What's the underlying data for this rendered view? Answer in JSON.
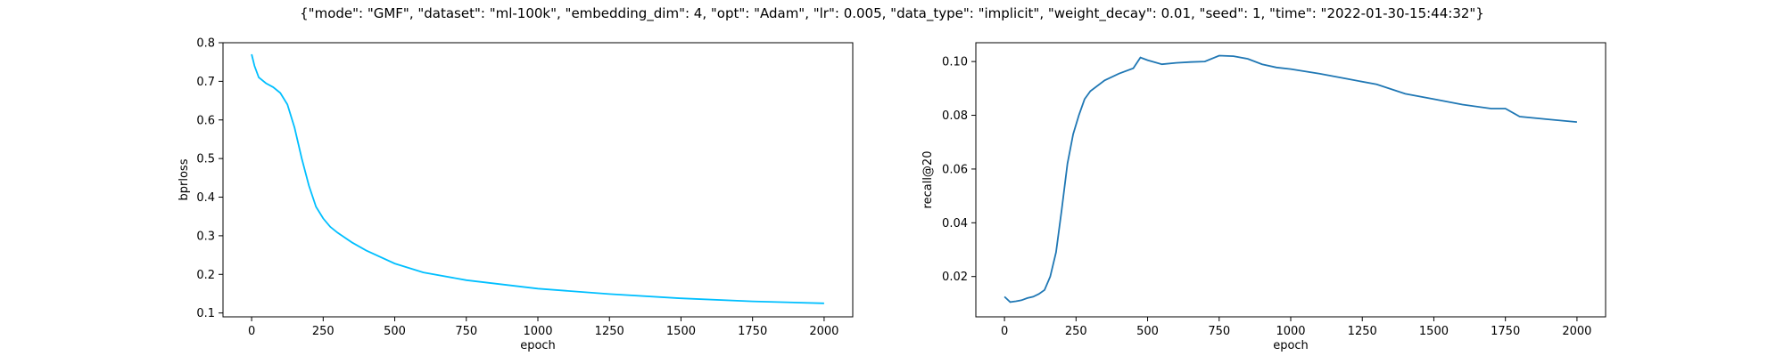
{
  "suptitle": "{\"mode\": \"GMF\", \"dataset\": \"ml-100k\", \"embedding_dim\": 4, \"opt\": \"Adam\", \"lr\": 0.005, \"data_type\": \"implicit\", \"weight_decay\": 0.01, \"seed\": 1, \"time\": \"2022-01-30-15:44:32\"}",
  "chart_data": [
    {
      "type": "line",
      "xlabel": "epoch",
      "ylabel": "bprloss",
      "xlim": [
        -100,
        2100
      ],
      "ylim": [
        0.09,
        0.8
      ],
      "xticks": [
        0,
        250,
        500,
        750,
        1000,
        1250,
        1500,
        1750,
        2000
      ],
      "yticks": [
        0.1,
        0.2,
        0.3,
        0.4,
        0.5,
        0.6,
        0.7,
        0.8
      ],
      "ytick_labels": [
        "0.1",
        "0.2",
        "0.3",
        "0.4",
        "0.5",
        "0.6",
        "0.7",
        "0.8"
      ],
      "color": "#00bfff",
      "grid": false,
      "x": [
        0,
        10,
        25,
        50,
        75,
        100,
        125,
        150,
        175,
        200,
        225,
        250,
        275,
        300,
        350,
        400,
        500,
        600,
        750,
        1000,
        1250,
        1500,
        1750,
        2000
      ],
      "y": [
        0.77,
        0.74,
        0.71,
        0.695,
        0.685,
        0.67,
        0.64,
        0.58,
        0.5,
        0.43,
        0.375,
        0.345,
        0.323,
        0.308,
        0.283,
        0.262,
        0.228,
        0.205,
        0.185,
        0.163,
        0.149,
        0.138,
        0.13,
        0.125
      ]
    },
    {
      "type": "line",
      "xlabel": "epoch",
      "ylabel": "recall@20",
      "xlim": [
        -100,
        2100
      ],
      "ylim": [
        0.005,
        0.107
      ],
      "xticks": [
        0,
        250,
        500,
        750,
        1000,
        1250,
        1500,
        1750,
        2000
      ],
      "yticks": [
        0.02,
        0.04,
        0.06,
        0.08,
        0.1
      ],
      "ytick_labels": [
        "0.02",
        "0.04",
        "0.06",
        "0.08",
        "0.10"
      ],
      "color": "#1f77b4",
      "grid": false,
      "x": [
        0,
        10,
        20,
        40,
        60,
        80,
        100,
        120,
        140,
        160,
        180,
        200,
        220,
        240,
        260,
        280,
        300,
        350,
        400,
        450,
        475,
        500,
        550,
        600,
        650,
        700,
        750,
        800,
        850,
        900,
        950,
        1000,
        1100,
        1200,
        1300,
        1400,
        1500,
        1600,
        1700,
        1750,
        1800,
        1900,
        2000
      ],
      "y": [
        0.0125,
        0.0115,
        0.0105,
        0.0108,
        0.0112,
        0.012,
        0.0125,
        0.0135,
        0.015,
        0.02,
        0.029,
        0.045,
        0.062,
        0.073,
        0.08,
        0.086,
        0.089,
        0.093,
        0.0955,
        0.0975,
        0.1015,
        0.1005,
        0.099,
        0.0995,
        0.0998,
        0.1,
        0.1022,
        0.102,
        0.101,
        0.099,
        0.0978,
        0.0972,
        0.0955,
        0.0935,
        0.0915,
        0.088,
        0.086,
        0.084,
        0.0825,
        0.0825,
        0.0795,
        0.0785,
        0.0775
      ]
    }
  ]
}
